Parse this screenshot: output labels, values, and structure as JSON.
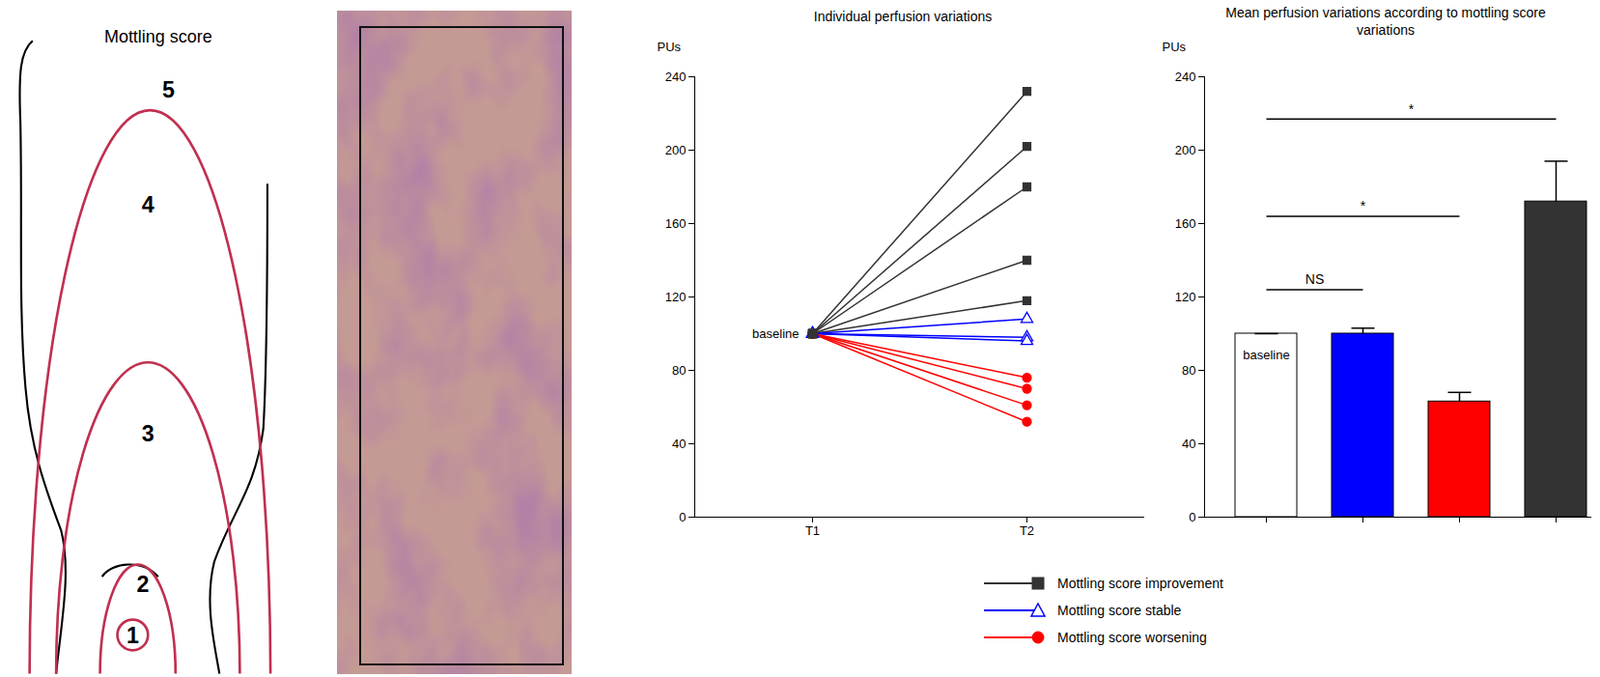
{
  "diagram": {
    "title": "Mottling score",
    "zones": [
      "1",
      "2",
      "3",
      "4",
      "5"
    ]
  },
  "chart_data": [
    {
      "type": "line",
      "title": "Individual perfusion variations",
      "x": [
        "T1",
        "T2"
      ],
      "ylabel": "PUs",
      "ylim": [
        0,
        240
      ],
      "yticks": [
        0,
        40,
        80,
        120,
        160,
        200,
        240
      ],
      "series": [
        {
          "name": "Mottling score improvement",
          "color": "#333333",
          "marker": "square",
          "values": [
            [
              100,
              232
            ],
            [
              100,
              202
            ],
            [
              100,
              180
            ],
            [
              100,
              140
            ],
            [
              100,
              118
            ]
          ]
        },
        {
          "name": "Mottling score stable",
          "color": "#0000ff",
          "marker": "open triangle",
          "values": [
            [
              100,
              108
            ],
            [
              100,
              98
            ],
            [
              100,
              96
            ]
          ]
        },
        {
          "name": "Mottling score worsening",
          "color": "#ff0000",
          "marker": "circle",
          "values": [
            [
              100,
              76
            ],
            [
              100,
              70
            ],
            [
              100,
              61
            ],
            [
              100,
              52
            ]
          ]
        }
      ],
      "annotations": [
        {
          "text": "baseline",
          "x": "T1",
          "y": 100
        }
      ],
      "legend": "bottom"
    },
    {
      "type": "bar",
      "title": "Mean perfusion variations according to mottling score variations",
      "categories": [
        null,
        null,
        null,
        null
      ],
      "values": [
        100,
        100,
        63,
        172
      ],
      "errors": [
        0,
        3,
        5,
        22
      ],
      "colors": [
        "#ffffff",
        "#0000ff",
        "#ff0000",
        "#333333"
      ],
      "ylabel": "PUs",
      "ylim": [
        0,
        240
      ],
      "yticks": [
        0,
        40,
        80,
        120,
        160,
        200,
        240
      ],
      "annotations": [
        {
          "text": "baseline",
          "x": 0,
          "y": 88
        },
        {
          "text": "NS",
          "from": 0,
          "to": 1,
          "y": 124
        },
        {
          "text": "*",
          "from": 0,
          "to": 2,
          "y": 164
        },
        {
          "text": "*",
          "from": 0,
          "to": 3,
          "y": 217
        }
      ]
    }
  ]
}
